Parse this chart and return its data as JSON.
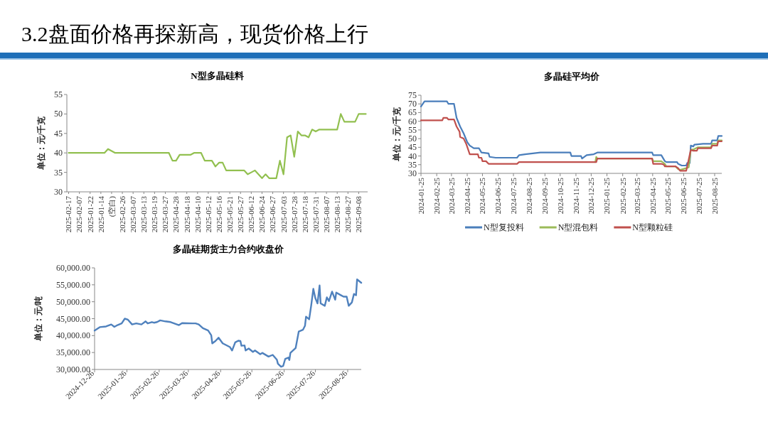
{
  "chart_data": [
    {
      "type": "other",
      "title": "3.2盘面价格再探新高，现货价格上行"
    },
    {
      "type": "line",
      "title": "N型多晶硅料",
      "ylabel": "单位：元/千克",
      "color": "#92c050",
      "ylim": [
        30,
        55
      ],
      "yticks": [
        30,
        35,
        40,
        45,
        50,
        55
      ],
      "categories": [
        "2025-02-17",
        null,
        null,
        "2025-02-07",
        null,
        null,
        "2025-01-22",
        null,
        null,
        "2025-01-14",
        null,
        null,
        "(空白)",
        null,
        null,
        "2025-02-26",
        null,
        null,
        "2025-03-07",
        null,
        null,
        "2025-03-13",
        null,
        null,
        "2025-03-19",
        null,
        null,
        "2025-03-27",
        null,
        null,
        "2025-04-28",
        null,
        null,
        "2025-04-18",
        null,
        null,
        "2025-04-10",
        null,
        null,
        "2025-05-12",
        null,
        null,
        "2025-05-16",
        null,
        null,
        "2025-05-21",
        null,
        null,
        "2025-05-27",
        null,
        null,
        "2025-06-12",
        null,
        null,
        "2025-06-24",
        null,
        null,
        "2025-06-27",
        null,
        null,
        "2025-07-03",
        null,
        null,
        "2025-07-28",
        null,
        null,
        "2025-07-18",
        null,
        null,
        "2025-07-31",
        null,
        null,
        "2025-08-07",
        null,
        null,
        "2025-08-13",
        null,
        null,
        "2025-08-27",
        null,
        null,
        "2025-09-08",
        null,
        null
      ],
      "values": [
        40,
        40,
        40,
        40,
        40,
        40,
        40,
        40,
        40,
        40,
        40,
        41,
        40.5,
        40,
        40,
        40,
        40,
        40,
        40,
        40,
        40,
        40,
        40,
        40,
        40,
        40,
        40,
        40,
        40,
        38,
        38,
        39.5,
        39.5,
        39.5,
        39.5,
        40,
        40,
        40,
        38,
        38,
        38,
        36.5,
        37.5,
        37.5,
        35.5,
        35.5,
        35.5,
        35.5,
        35.5,
        35.5,
        34.5,
        35,
        35.5,
        34.5,
        33.5,
        34.5,
        33.5,
        33.5,
        33.5,
        38,
        34.5,
        44,
        44.5,
        39,
        45.5,
        44.5,
        44.5,
        44,
        46,
        45.5,
        46,
        46,
        46,
        46,
        46,
        46,
        50,
        48,
        48,
        48,
        48,
        50,
        50,
        50
      ]
    },
    {
      "type": "line",
      "title": "多晶硅平均价",
      "ylabel": "单位：元/千克",
      "ylim": [
        30,
        75
      ],
      "yticks": [
        30,
        35,
        40,
        45,
        50,
        55,
        60,
        65,
        70,
        75
      ],
      "xlim": [
        "2024-01-25",
        "2025-09-08"
      ],
      "xticks": [
        "2024-01-25",
        "2024-02-25",
        "2024-03-25",
        "2024-04-25",
        "2024-05-25",
        "2024-06-25",
        "2024-07-25",
        "2024-08-25",
        "2024-09-25",
        "2024-10-25",
        "2024-11-25",
        "2024-12-25",
        "2025-01-25",
        "2025-02-25",
        "2025-03-25",
        "2025-04-25",
        "2025-05-25",
        "2025-06-25",
        "2025-07-25",
        "2025-08-25"
      ],
      "legend": "bottom",
      "series": [
        {
          "name": "N型复投料",
          "color": "#4a7ebb",
          "x": [
            "2024-01-25",
            "2024-02-01",
            "2024-03-16",
            "2024-03-19",
            "2024-03-30",
            "2024-04-04",
            "2024-04-11",
            "2024-04-18",
            "2024-04-25",
            "2024-04-30",
            "2024-05-08",
            "2024-05-18",
            "2024-05-23",
            "2024-06-06",
            "2024-06-08",
            "2024-06-20",
            "2024-08-01",
            "2024-08-05",
            "2024-08-17",
            "2024-09-16",
            "2024-11-14",
            "2024-11-16",
            "2024-12-05",
            "2024-12-07",
            "2024-12-16",
            "2024-12-30",
            "2025-01-06",
            "2025-04-24",
            "2025-04-26",
            "2025-05-12",
            "2025-05-19",
            "2025-05-22",
            "2025-06-12",
            "2025-06-14",
            "2025-06-21",
            "2025-06-30",
            "2025-07-02",
            "2025-07-07",
            "2025-07-09",
            "2025-07-14",
            "2025-07-16",
            "2025-08-02",
            "2025-08-18",
            "2025-08-20",
            "2025-08-30",
            "2025-09-01",
            "2025-09-08"
          ],
          "values": [
            68.5,
            71.5,
            71.5,
            70,
            70,
            62,
            57,
            53,
            48,
            46,
            44.5,
            44.5,
            42,
            41.5,
            39.5,
            39,
            39,
            40.5,
            41,
            42,
            42,
            40,
            40,
            38.5,
            40.5,
            41,
            42,
            42,
            40.5,
            40.5,
            37,
            36.5,
            36.5,
            35.5,
            34.5,
            34.5,
            36,
            36,
            46,
            45.5,
            46.5,
            47,
            47,
            49,
            49,
            51.5,
            51.5
          ]
        },
        {
          "name": "N型混包料",
          "color": "#9bbb59",
          "x": [
            "2025-01-02",
            "2025-01-04",
            "2025-01-06",
            "2025-04-24",
            "2025-04-26",
            "2025-05-12",
            "2025-05-19",
            "2025-05-22",
            "2025-06-09",
            "2025-06-14",
            "2025-06-18",
            "2025-06-30",
            "2025-07-05",
            "2025-07-09",
            "2025-07-16",
            "2025-07-23",
            "2025-08-18",
            "2025-08-20",
            "2025-08-30",
            "2025-09-01",
            "2025-09-08"
          ],
          "values": [
            36.5,
            39.5,
            38.5,
            38.5,
            37,
            37,
            35.5,
            34,
            34,
            32.5,
            32,
            33,
            33.5,
            43.5,
            44,
            45,
            45,
            47,
            47,
            49,
            49
          ]
        },
        {
          "name": "N型颗粒硅",
          "color": "#c0504d",
          "x": [
            "2024-01-25",
            "2024-03-07",
            "2024-03-09",
            "2024-03-16",
            "2024-03-19",
            "2024-03-30",
            "2024-04-04",
            "2024-04-10",
            "2024-04-11",
            "2024-04-18",
            "2024-04-23",
            "2024-04-30",
            "2024-05-16",
            "2024-05-18",
            "2024-05-23",
            "2024-05-25",
            "2024-06-01",
            "2024-06-06",
            "2024-08-01",
            "2024-08-05",
            "2025-01-04",
            "2025-01-06",
            "2025-04-24",
            "2025-04-26",
            "2025-05-12",
            "2025-05-17",
            "2025-05-19",
            "2025-06-09",
            "2025-06-14",
            "2025-06-18",
            "2025-06-30",
            "2025-07-02",
            "2025-07-09",
            "2025-07-14",
            "2025-07-21",
            "2025-07-23",
            "2025-08-18",
            "2025-08-20",
            "2025-08-30",
            "2025-09-01",
            "2025-09-08"
          ],
          "values": [
            60.5,
            60.5,
            62,
            62,
            61,
            61,
            57,
            54,
            51,
            50,
            47,
            41,
            41,
            39,
            39,
            37,
            37,
            35.5,
            35.5,
            36.5,
            36.5,
            38.5,
            38.5,
            35.5,
            35.5,
            35,
            34,
            34,
            33,
            31.5,
            31.5,
            34,
            43.5,
            43,
            43,
            44.5,
            44.5,
            46,
            46,
            48.5,
            48.5
          ]
        }
      ]
    },
    {
      "type": "line",
      "title": "多晶硅期货主力合约收盘价",
      "ylabel": "单位：元/吨",
      "color": "#4f81bd",
      "ylim": [
        30000,
        60000
      ],
      "yticks": [
        {
          "value": 30000,
          "label": "30,000.00"
        },
        {
          "value": 35000,
          "label": "35,000.00"
        },
        {
          "value": 40000,
          "label": "40,000.00"
        },
        {
          "value": 45000,
          "label": "45,000.00"
        },
        {
          "value": 50000,
          "label": "50,000.00"
        },
        {
          "value": 55000,
          "label": "55,000.00"
        },
        {
          "value": 60000,
          "label": "60,000.00"
        }
      ],
      "xlim": [
        "2024-12-26",
        "2025-09-08"
      ],
      "xticks": [
        "2024-12-26",
        "2025-01-26",
        "2025-02-26",
        "2025-03-26",
        "2025-04-26",
        "2025-05-26",
        "2025-06-26",
        "2025-07-26",
        "2025-08-26"
      ],
      "x": [
        "2024-12-26",
        "2024-12-31",
        "2025-01-06",
        "2025-01-11",
        "2025-01-14",
        "2025-01-17",
        "2025-01-21",
        "2025-01-24",
        "2025-01-27",
        "2025-01-31",
        "2025-02-04",
        "2025-02-09",
        "2025-02-13",
        "2025-02-15",
        "2025-02-19",
        "2025-02-21",
        "2025-02-24",
        "2025-02-27",
        "2025-03-04",
        "2025-03-09",
        "2025-03-17",
        "2025-03-20",
        "2025-03-30",
        "2025-04-02",
        "2025-04-05",
        "2025-04-09",
        "2025-04-14",
        "2025-04-17",
        "2025-04-18",
        "2025-04-21",
        "2025-04-24",
        "2025-04-28",
        "2025-05-05",
        "2025-05-07",
        "2025-05-10",
        "2025-05-13",
        "2025-05-15",
        "2025-05-16",
        "2025-05-19",
        "2025-05-20",
        "2025-05-23",
        "2025-05-27",
        "2025-05-29",
        "2025-06-03",
        "2025-06-05",
        "2025-06-11",
        "2025-06-15",
        "2025-06-19",
        "2025-06-20",
        "2025-06-23",
        "2025-06-25",
        "2025-06-27",
        "2025-06-30",
        "2025-07-01",
        "2025-07-02",
        "2025-07-07",
        "2025-07-10",
        "2025-07-14",
        "2025-07-16",
        "2025-07-17",
        "2025-07-20",
        "2025-07-22",
        "2025-07-24",
        "2025-07-26",
        "2025-07-28",
        "2025-07-30",
        "2025-07-31",
        "2025-08-04",
        "2025-08-06",
        "2025-08-08",
        "2025-08-11",
        "2025-08-14",
        "2025-08-15",
        "2025-08-19",
        "2025-08-22",
        "2025-08-25",
        "2025-08-27",
        "2025-08-30",
        "2025-09-01",
        "2025-09-03",
        "2025-09-04",
        "2025-09-08"
      ],
      "values": [
        41500,
        42500,
        42700,
        43300,
        42600,
        43100,
        43600,
        45000,
        44700,
        43300,
        43600,
        43300,
        44200,
        43600,
        44000,
        43800,
        44000,
        44500,
        44200,
        44000,
        43100,
        43700,
        43600,
        43600,
        43300,
        42200,
        41500,
        40100,
        37700,
        38400,
        39400,
        37700,
        36600,
        35600,
        38000,
        38500,
        38400,
        37000,
        37100,
        35600,
        36200,
        35200,
        35600,
        34500,
        34900,
        33800,
        34300,
        32900,
        31700,
        30800,
        31000,
        33100,
        33500,
        32800,
        34900,
        36300,
        41200,
        41700,
        42900,
        45600,
        44800,
        49000,
        53800,
        51000,
        49500,
        54800,
        49500,
        48800,
        51300,
        50200,
        53000,
        50600,
        52700,
        52000,
        51500,
        51500,
        48800,
        49800,
        52300,
        51900,
        56600,
        55600
      ]
    }
  ]
}
